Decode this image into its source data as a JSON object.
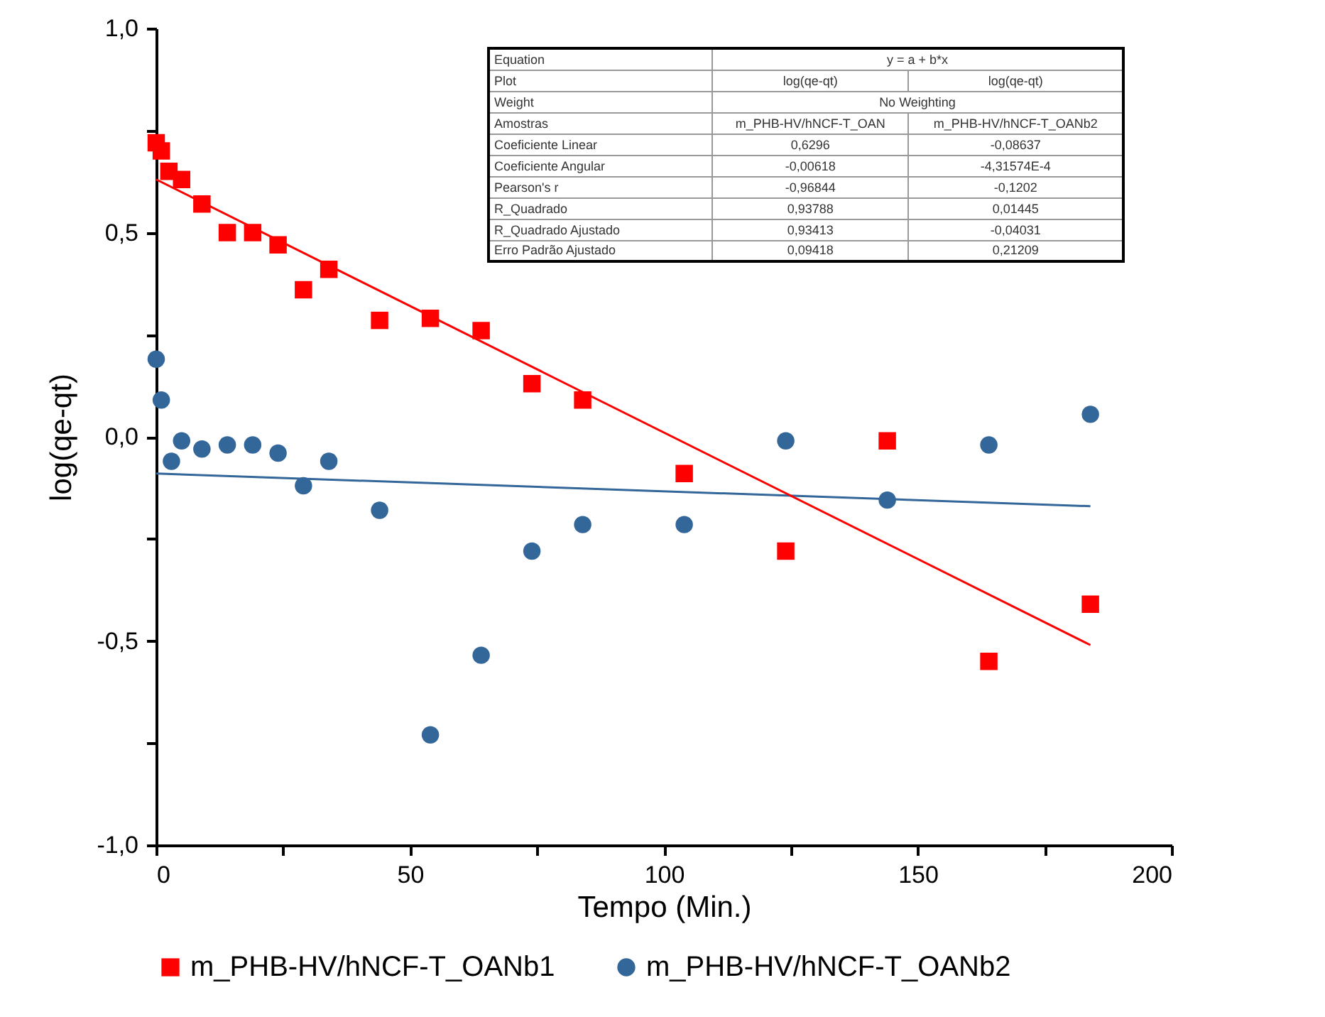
{
  "chart_data": {
    "type": "scatter",
    "xlabel": "Tempo (Min.)",
    "ylabel": "log(qe-qt)",
    "xlim": [
      0,
      200
    ],
    "xticks": [
      0,
      {
        "value": 25,
        "label": null
      },
      50,
      {
        "value": 75,
        "label": null
      },
      100,
      {
        "value": 125,
        "label": null
      },
      150,
      {
        "value": 175,
        "label": null
      },
      200
    ],
    "ylim": [
      -1,
      1
    ],
    "yticks": [
      {
        "value": -1,
        "label": "-1,0"
      },
      {
        "value": -0.75,
        "label": null
      },
      {
        "value": -0.5,
        "label": "-0,5"
      },
      {
        "value": -0.25,
        "label": null
      },
      {
        "value": 0,
        "label": "0,0"
      },
      {
        "value": 0.25,
        "label": null
      },
      {
        "value": 0.5,
        "label": "0,5"
      },
      {
        "value": 0.75,
        "label": null
      },
      {
        "value": 1,
        "label": "1,0"
      }
    ],
    "grid": false,
    "legend": "bottom",
    "series": [
      {
        "name": "m_PHB-HV/hNCF-T_OANb1",
        "marker": "square",
        "color": "#ff0000",
        "x": [
          0,
          1,
          2.5,
          5,
          9,
          14,
          19,
          24,
          29,
          34,
          44,
          54,
          64,
          74,
          84,
          104,
          124,
          144,
          164,
          184
        ],
        "values": [
          0.72,
          0.7,
          0.65,
          0.63,
          0.57,
          0.5,
          0.5,
          0.47,
          0.36,
          0.41,
          0.285,
          0.29,
          0.26,
          0.13,
          0.09,
          -0.09,
          -0.28,
          -0.01,
          -0.55,
          -0.41
        ]
      },
      {
        "name": "m_PHB-HV/hNCF-T_OANb2",
        "marker": "circle",
        "color": "#336699",
        "x": [
          0,
          1,
          3,
          5,
          9,
          14,
          19,
          24,
          29,
          34,
          44,
          54,
          64,
          74,
          84,
          104,
          124,
          144,
          164,
          184
        ],
        "values": [
          0.19,
          0.09,
          -0.06,
          -0.01,
          -0.03,
          -0.02,
          -0.02,
          -0.04,
          -0.12,
          -0.06,
          -0.18,
          -0.73,
          -0.535,
          -0.28,
          -0.215,
          -0.215,
          -0.01,
          -0.155,
          -0.02,
          0.055
        ]
      },
      {
        "type": "line",
        "color": "#ff0000",
        "x": [
          0,
          184
        ],
        "values": [
          0.63,
          -0.51
        ]
      },
      {
        "type": "line",
        "color": "#336699",
        "x": [
          0,
          184
        ],
        "values": [
          -0.09,
          -0.17
        ]
      }
    ],
    "annotations": [
      "Equation",
      "y = a + b*x",
      "Plot",
      "log(qe-qt)",
      "log(qe-qt)",
      "Weight",
      "No Weighting",
      "Amostras",
      "m_PHB-HV/hNCF-T_OAN",
      "m_PHB-HV/hNCF-T_OANb2",
      "Coeficiente Linear",
      "0,6296",
      "-0,08637",
      "Coeficiente Angular",
      "-0,00618",
      "-4,31574E-4",
      "Pearson's r",
      "-0,96844",
      "-0,1202",
      "R_Quadrado",
      "0,93788",
      "0,01445",
      "R_Quadrado Ajustado",
      "0,93413",
      "-0,04031",
      "Erro Padrão Ajustado",
      "0,09418",
      "0,21209"
    ]
  }
}
